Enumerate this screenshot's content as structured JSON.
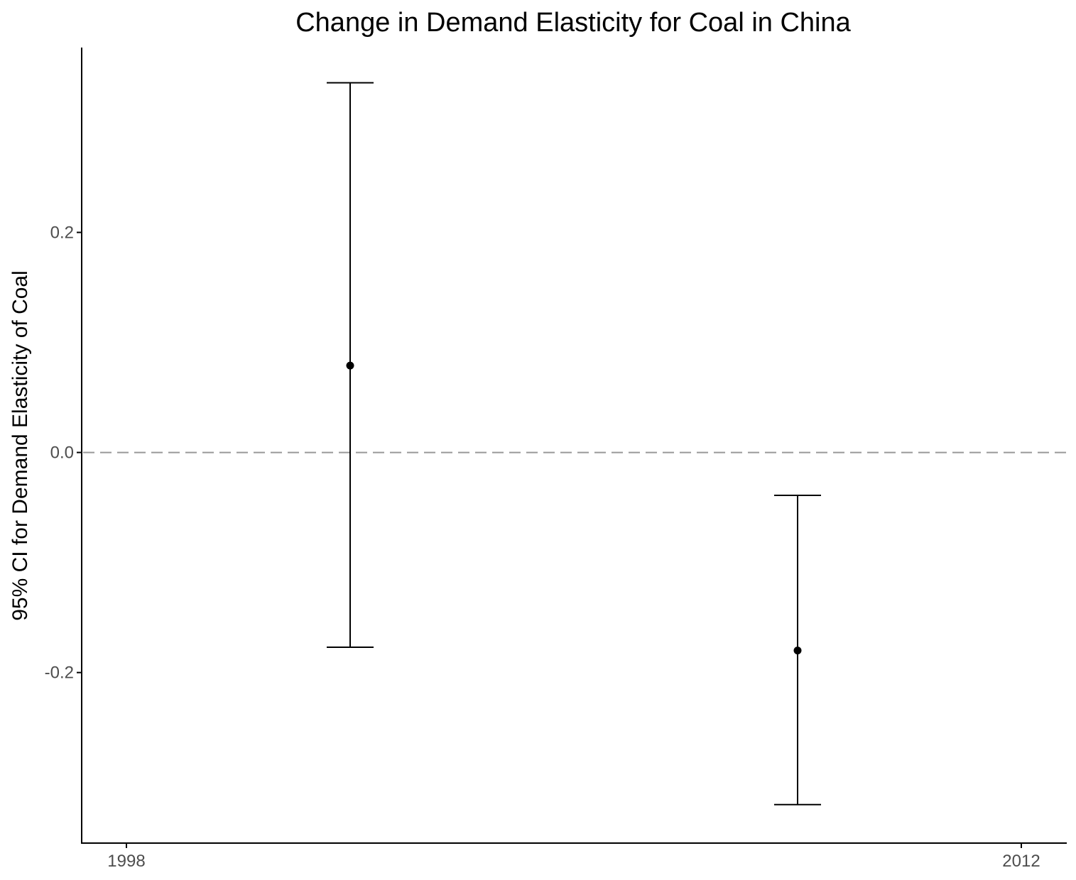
{
  "chart_data": {
    "type": "scatter",
    "title": "Change in Demand Elasticity for Coal in China",
    "xlabel": "",
    "ylabel": "95% CI for Demand Elasticity of Coal",
    "x_ticks": [
      "1998",
      "2012"
    ],
    "x_tick_values": [
      1998,
      2012
    ],
    "y_ticks": [
      "-0.2",
      "0.0",
      "0.2"
    ],
    "y_tick_values": [
      -0.2,
      0.0,
      0.2
    ],
    "xlim": [
      1997.3,
      2012.7
    ],
    "ylim": [
      -0.355,
      0.368
    ],
    "reference_line": {
      "y": 0.0,
      "style": "dashed",
      "color": "#999999"
    },
    "points": [
      {
        "x": 2001.5,
        "y": 0.079,
        "ci_low": -0.177,
        "ci_high": 0.336
      },
      {
        "x": 2008.5,
        "y": -0.18,
        "ci_low": -0.32,
        "ci_high": -0.039
      }
    ],
    "grid": false,
    "legend": "none",
    "colors": {
      "marks": "#000000",
      "axis": "#000000",
      "tick_text": "#4d4d4d"
    }
  }
}
